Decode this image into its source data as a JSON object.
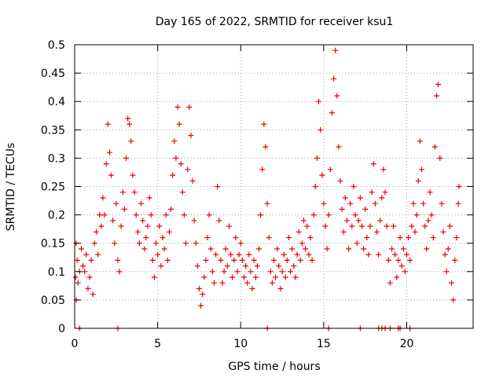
{
  "chart_data": {
    "type": "scatter",
    "title": "Day 165 of 2022, SRMTID for receiver ksu1",
    "xlabel": "GPS time / hours",
    "ylabel": "SRMTID / TECUs",
    "xlim": [
      0,
      24
    ],
    "ylim": [
      0,
      0.5
    ],
    "x_ticks": [
      0,
      5,
      10,
      15,
      20
    ],
    "y_ticks": [
      0,
      0.05,
      0.1,
      0.15,
      0.2,
      0.25,
      0.3,
      0.35,
      0.4,
      0.45,
      0.5
    ],
    "x_tick_labels": [
      "0",
      "5",
      "10",
      "15",
      "20"
    ],
    "y_tick_labels": [
      "0",
      "0.05",
      "0.1",
      "0.15",
      "0.2",
      "0.25",
      "0.3",
      "0.35",
      "0.4",
      "0.45",
      "0.5"
    ],
    "grid": true,
    "marker": "+",
    "color": "#ee0000",
    "series": [
      {
        "name": "SRMTID",
        "points": [
          [
            0.05,
            0.09
          ],
          [
            0.08,
            0.15
          ],
          [
            0.1,
            0.05
          ],
          [
            0.15,
            0.12
          ],
          [
            0.2,
            0.08
          ],
          [
            0.3,
            0.1
          ],
          [
            0.4,
            0.14
          ],
          [
            0.5,
            0.11
          ],
          [
            0.6,
            0.1
          ],
          [
            0.7,
            0.13
          ],
          [
            0.8,
            0.07
          ],
          [
            0.9,
            0.09
          ],
          [
            1.0,
            0.12
          ],
          [
            1.1,
            0.06
          ],
          [
            1.2,
            0.15
          ],
          [
            1.3,
            0.17
          ],
          [
            1.4,
            0.13
          ],
          [
            1.5,
            0.2
          ],
          [
            1.6,
            0.18
          ],
          [
            1.7,
            0.23
          ],
          [
            1.8,
            0.2
          ],
          [
            1.9,
            0.29
          ],
          [
            2.0,
            0.36
          ],
          [
            2.1,
            0.31
          ],
          [
            2.2,
            0.27
          ],
          [
            2.3,
            0.19
          ],
          [
            2.4,
            0.15
          ],
          [
            2.5,
            0.22
          ],
          [
            2.6,
            0.12
          ],
          [
            2.7,
            0.1
          ],
          [
            2.8,
            0.18
          ],
          [
            2.9,
            0.24
          ],
          [
            3.0,
            0.21
          ],
          [
            3.1,
            0.3
          ],
          [
            3.2,
            0.37
          ],
          [
            3.3,
            0.36
          ],
          [
            3.4,
            0.33
          ],
          [
            3.5,
            0.27
          ],
          [
            3.6,
            0.24
          ],
          [
            3.7,
            0.2
          ],
          [
            3.8,
            0.17
          ],
          [
            3.9,
            0.15
          ],
          [
            4.0,
            0.22
          ],
          [
            4.1,
            0.19
          ],
          [
            4.2,
            0.14
          ],
          [
            4.3,
            0.16
          ],
          [
            4.4,
            0.18
          ],
          [
            4.5,
            0.23
          ],
          [
            4.6,
            0.2
          ],
          [
            4.7,
            0.12
          ],
          [
            4.8,
            0.09
          ],
          [
            4.9,
            0.15
          ],
          [
            5.0,
            0.13
          ],
          [
            5.1,
            0.18
          ],
          [
            5.2,
            0.11
          ],
          [
            5.3,
            0.16
          ],
          [
            5.4,
            0.14
          ],
          [
            5.5,
            0.2
          ],
          [
            5.6,
            0.12
          ],
          [
            5.7,
            0.17
          ],
          [
            5.8,
            0.21
          ],
          [
            5.9,
            0.27
          ],
          [
            6.0,
            0.33
          ],
          [
            6.1,
            0.3
          ],
          [
            6.2,
            0.39
          ],
          [
            6.3,
            0.36
          ],
          [
            6.4,
            0.29
          ],
          [
            6.5,
            0.24
          ],
          [
            6.6,
            0.2
          ],
          [
            6.7,
            0.15
          ],
          [
            6.8,
            0.28
          ],
          [
            6.9,
            0.39
          ],
          [
            7.0,
            0.34
          ],
          [
            7.1,
            0.26
          ],
          [
            7.2,
            0.19
          ],
          [
            7.3,
            0.15
          ],
          [
            7.4,
            0.11
          ],
          [
            7.5,
            0.07
          ],
          [
            7.6,
            0.04
          ],
          [
            7.7,
            0.06
          ],
          [
            7.8,
            0.09
          ],
          [
            7.9,
            0.12
          ],
          [
            8.0,
            0.16
          ],
          [
            8.1,
            0.2
          ],
          [
            8.2,
            0.14
          ],
          [
            8.3,
            0.1
          ],
          [
            8.4,
            0.08
          ],
          [
            8.5,
            0.13
          ],
          [
            8.6,
            0.25
          ],
          [
            8.7,
            0.19
          ],
          [
            8.8,
            0.12
          ],
          [
            8.9,
            0.08
          ],
          [
            9.0,
            0.1
          ],
          [
            9.1,
            0.14
          ],
          [
            9.2,
            0.11
          ],
          [
            9.3,
            0.18
          ],
          [
            9.4,
            0.13
          ],
          [
            9.5,
            0.09
          ],
          [
            9.6,
            0.12
          ],
          [
            9.7,
            0.16
          ],
          [
            9.8,
            0.1
          ],
          [
            9.9,
            0.13
          ],
          [
            10.0,
            0.15
          ],
          [
            10.1,
            0.12
          ],
          [
            10.2,
            0.09
          ],
          [
            10.3,
            0.11
          ],
          [
            10.4,
            0.08
          ],
          [
            10.5,
            0.13
          ],
          [
            10.6,
            0.1
          ],
          [
            10.7,
            0.07
          ],
          [
            10.8,
            0.12
          ],
          [
            10.9,
            0.09
          ],
          [
            11.0,
            0.11
          ],
          [
            11.1,
            0.14
          ],
          [
            11.2,
            0.2
          ],
          [
            11.3,
            0.28
          ],
          [
            11.4,
            0.36
          ],
          [
            11.5,
            0.32
          ],
          [
            11.6,
            0.22
          ],
          [
            11.7,
            0.16
          ],
          [
            11.8,
            0.1
          ],
          [
            11.9,
            0.08
          ],
          [
            12.0,
            0.12
          ],
          [
            12.1,
            0.09
          ],
          [
            12.2,
            0.14
          ],
          [
            12.3,
            0.11
          ],
          [
            12.4,
            0.07
          ],
          [
            12.5,
            0.1
          ],
          [
            12.6,
            0.13
          ],
          [
            12.7,
            0.09
          ],
          [
            12.8,
            0.12
          ],
          [
            12.9,
            0.16
          ],
          [
            13.0,
            0.1
          ],
          [
            13.1,
            0.14
          ],
          [
            13.2,
            0.11
          ],
          [
            13.3,
            0.09
          ],
          [
            13.4,
            0.13
          ],
          [
            13.5,
            0.17
          ],
          [
            13.6,
            0.12
          ],
          [
            13.7,
            0.15
          ],
          [
            13.8,
            0.19
          ],
          [
            13.9,
            0.14
          ],
          [
            14.0,
            0.18
          ],
          [
            14.1,
            0.13
          ],
          [
            14.2,
            0.16
          ],
          [
            14.3,
            0.12
          ],
          [
            14.4,
            0.2
          ],
          [
            14.5,
            0.25
          ],
          [
            14.6,
            0.3
          ],
          [
            14.7,
            0.4
          ],
          [
            14.8,
            0.35
          ],
          [
            14.9,
            0.27
          ],
          [
            15.0,
            0.22
          ],
          [
            15.1,
            0.18
          ],
          [
            15.2,
            0.14
          ],
          [
            15.3,
            0.2
          ],
          [
            15.4,
            0.28
          ],
          [
            15.5,
            0.38
          ],
          [
            15.6,
            0.44
          ],
          [
            15.7,
            0.49
          ],
          [
            15.8,
            0.41
          ],
          [
            15.9,
            0.32
          ],
          [
            16.0,
            0.26
          ],
          [
            16.1,
            0.21
          ],
          [
            16.2,
            0.17
          ],
          [
            16.3,
            0.23
          ],
          [
            16.4,
            0.19
          ],
          [
            16.5,
            0.14
          ],
          [
            16.6,
            0.22
          ],
          [
            16.7,
            0.18
          ],
          [
            16.8,
            0.25
          ],
          [
            16.9,
            0.2
          ],
          [
            17.0,
            0.15
          ],
          [
            17.1,
            0.19
          ],
          [
            17.2,
            0.23
          ],
          [
            17.3,
            0.18
          ],
          [
            17.4,
            0.14
          ],
          [
            17.5,
            0.21
          ],
          [
            17.6,
            0.16
          ],
          [
            17.7,
            0.13
          ],
          [
            17.8,
            0.18
          ],
          [
            17.9,
            0.24
          ],
          [
            18.0,
            0.29
          ],
          [
            18.1,
            0.22
          ],
          [
            18.2,
            0.17
          ],
          [
            18.3,
            0.13
          ],
          [
            18.4,
            0.19
          ],
          [
            18.5,
            0.23
          ],
          [
            18.6,
            0.28
          ],
          [
            18.7,
            0.24
          ],
          [
            18.8,
            0.18
          ],
          [
            18.9,
            0.12
          ],
          [
            19.0,
            0.08
          ],
          [
            19.1,
            0.14
          ],
          [
            19.2,
            0.18
          ],
          [
            19.3,
            0.13
          ],
          [
            19.4,
            0.09
          ],
          [
            19.5,
            0.12
          ],
          [
            19.6,
            0.16
          ],
          [
            19.7,
            0.11
          ],
          [
            19.8,
            0.14
          ],
          [
            19.9,
            0.1
          ],
          [
            20.0,
            0.13
          ],
          [
            20.1,
            0.16
          ],
          [
            20.2,
            0.12
          ],
          [
            20.3,
            0.18
          ],
          [
            20.4,
            0.22
          ],
          [
            20.5,
            0.17
          ],
          [
            20.6,
            0.2
          ],
          [
            20.7,
            0.26
          ],
          [
            20.8,
            0.33
          ],
          [
            20.9,
            0.28
          ],
          [
            21.0,
            0.22
          ],
          [
            21.1,
            0.18
          ],
          [
            21.2,
            0.14
          ],
          [
            21.3,
            0.19
          ],
          [
            21.4,
            0.24
          ],
          [
            21.5,
            0.2
          ],
          [
            21.6,
            0.16
          ],
          [
            21.7,
            0.32
          ],
          [
            21.8,
            0.41
          ],
          [
            21.9,
            0.43
          ],
          [
            22.0,
            0.3
          ],
          [
            22.1,
            0.22
          ],
          [
            22.2,
            0.17
          ],
          [
            22.3,
            0.13
          ],
          [
            22.4,
            0.1
          ],
          [
            22.5,
            0.14
          ],
          [
            22.6,
            0.18
          ],
          [
            22.7,
            0.08
          ],
          [
            22.8,
            0.05
          ],
          [
            22.9,
            0.12
          ],
          [
            23.0,
            0.16
          ],
          [
            23.1,
            0.22
          ],
          [
            23.15,
            0.25
          ],
          [
            0.3,
            0.0
          ],
          [
            2.6,
            0.0
          ],
          [
            11.6,
            0.0
          ],
          [
            15.3,
            0.0
          ],
          [
            17.2,
            0.0
          ],
          [
            18.3,
            0.0
          ],
          [
            18.5,
            0.0
          ],
          [
            18.7,
            0.0
          ],
          [
            19.0,
            0.0
          ],
          [
            19.5,
            0.0
          ],
          [
            19.6,
            0.0
          ],
          [
            20.2,
            0.0
          ]
        ]
      }
    ]
  }
}
